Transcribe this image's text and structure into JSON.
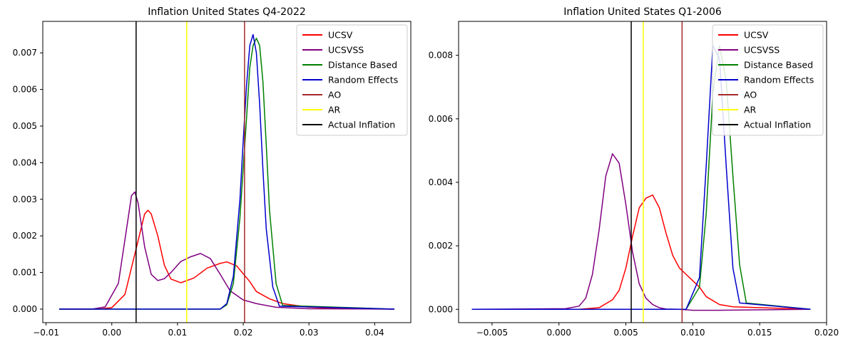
{
  "chart_data": [
    {
      "type": "line",
      "title": "Inflation United States Q4-2022",
      "xlabel": "",
      "ylabel": "",
      "xlim": [
        -0.0105,
        0.0455
      ],
      "ylim": [
        -0.00037,
        0.00786
      ],
      "xticks": [
        -0.01,
        0.0,
        0.01,
        0.02,
        0.03,
        0.04
      ],
      "xtick_labels": [
        "−0.01",
        "0.00",
        "0.01",
        "0.02",
        "0.03",
        "0.04"
      ],
      "yticks": [
        0.0,
        0.001,
        0.002,
        0.003,
        0.004,
        0.005,
        0.006,
        0.007
      ],
      "ytick_labels": [
        "0.000",
        "0.001",
        "0.002",
        "0.003",
        "0.004",
        "0.005",
        "0.006",
        "0.007"
      ],
      "legend_position": "top-right",
      "grid": false,
      "series": [
        {
          "name": "UCSV",
          "color": "#ff0000",
          "x": [
            -0.008,
            -0.002,
            0.0,
            0.002,
            0.0035,
            0.005,
            0.0055,
            0.006,
            0.007,
            0.008,
            0.009,
            0.0105,
            0.0125,
            0.0145,
            0.0165,
            0.0175,
            0.019,
            0.021,
            0.022,
            0.024,
            0.026,
            0.03,
            0.035,
            0.043
          ],
          "y": [
            0.0,
            0.0,
            4e-05,
            0.0004,
            0.0015,
            0.0026,
            0.0027,
            0.0026,
            0.002,
            0.0012,
            0.00082,
            0.00072,
            0.00085,
            0.00112,
            0.00125,
            0.00129,
            0.00118,
            0.00075,
            0.00048,
            0.00028,
            0.00015,
            5e-05,
            1e-05,
            0.0
          ]
        },
        {
          "name": "UCSVSS",
          "color": "#800080",
          "x": [
            -0.008,
            -0.003,
            -0.001,
            0.001,
            0.002,
            0.003,
            0.0035,
            0.004,
            0.005,
            0.006,
            0.007,
            0.008,
            0.009,
            0.0105,
            0.012,
            0.0135,
            0.015,
            0.0165,
            0.018,
            0.02,
            0.022,
            0.025,
            0.03,
            0.043
          ],
          "y": [
            0.0,
            0.0,
            6e-05,
            0.0007,
            0.0019,
            0.0031,
            0.0032,
            0.0029,
            0.0017,
            0.00095,
            0.00078,
            0.00083,
            0.001,
            0.0013,
            0.00143,
            0.00152,
            0.00138,
            0.00095,
            0.0005,
            0.00025,
            0.00015,
            5e-05,
            1e-05,
            0.0
          ]
        },
        {
          "name": "Distance Based",
          "color": "#008000",
          "x": [
            -0.008,
            0.0165,
            0.0175,
            0.0185,
            0.0195,
            0.0205,
            0.021,
            0.0215,
            0.022,
            0.0225,
            0.023,
            0.0235,
            0.024,
            0.025,
            0.026,
            0.043
          ],
          "y": [
            0.0,
            0.0,
            0.00012,
            0.0007,
            0.0025,
            0.0052,
            0.0066,
            0.0072,
            0.0074,
            0.0072,
            0.0062,
            0.0045,
            0.0027,
            0.0007,
            0.0001,
            0.0
          ]
        },
        {
          "name": "Random Effects",
          "color": "#0000cd",
          "x": [
            -0.008,
            0.0165,
            0.0175,
            0.0185,
            0.0195,
            0.02,
            0.0205,
            0.021,
            0.0215,
            0.022,
            0.0225,
            0.023,
            0.0235,
            0.0245,
            0.0255,
            0.043
          ],
          "y": [
            0.0,
            0.0,
            0.00015,
            0.0009,
            0.003,
            0.0046,
            0.0061,
            0.0072,
            0.0075,
            0.007,
            0.0056,
            0.0038,
            0.0022,
            0.0006,
            8e-05,
            0.0
          ]
        },
        {
          "name": "AO",
          "color": "#a52a2a",
          "vline": 0.0202
        },
        {
          "name": "AR",
          "color": "#ffff00",
          "vline": 0.0114
        },
        {
          "name": "Actual Inflation",
          "color": "#000000",
          "vline": 0.0037
        }
      ]
    },
    {
      "type": "line",
      "title": "Inflation United States Q1-2006",
      "xlabel": "",
      "ylabel": "",
      "xlim": [
        -0.0075,
        0.02
      ],
      "ylim": [
        -0.00042,
        0.00907
      ],
      "xticks": [
        -0.005,
        0.0,
        0.005,
        0.01,
        0.015,
        0.02
      ],
      "xtick_labels": [
        "−0.005",
        "0.000",
        "0.005",
        "0.010",
        "0.015",
        "0.020"
      ],
      "yticks": [
        0.0,
        0.002,
        0.004,
        0.006,
        0.008
      ],
      "ytick_labels": [
        "0.000",
        "0.002",
        "0.004",
        "0.006",
        "0.008"
      ],
      "legend_position": "top-right",
      "grid": false,
      "series": [
        {
          "name": "UCSV",
          "color": "#ff0000",
          "x": [
            -0.0065,
            0.0015,
            0.003,
            0.004,
            0.0045,
            0.005,
            0.0055,
            0.006,
            0.0065,
            0.007,
            0.0075,
            0.008,
            0.0085,
            0.009,
            0.0095,
            0.01,
            0.0105,
            0.011,
            0.012,
            0.013,
            0.0188
          ],
          "y": [
            0.0,
            0.0,
            5e-05,
            0.0003,
            0.0006,
            0.0013,
            0.0023,
            0.0032,
            0.0035,
            0.0036,
            0.0032,
            0.0024,
            0.0017,
            0.0013,
            0.0011,
            0.0009,
            0.0007,
            0.0004,
            0.00015,
            8e-05,
            0.0
          ]
        },
        {
          "name": "UCSVSS",
          "color": "#800080",
          "x": [
            -0.0065,
            0.0005,
            0.0015,
            0.002,
            0.0025,
            0.003,
            0.0035,
            0.004,
            0.0045,
            0.005,
            0.0055,
            0.006,
            0.0065,
            0.007,
            0.0075,
            0.008,
            0.009,
            0.01,
            0.012,
            0.0188
          ],
          "y": [
            0.0,
            2e-05,
            0.0001,
            0.00035,
            0.0011,
            0.0025,
            0.0042,
            0.0049,
            0.0046,
            0.0033,
            0.0018,
            0.0008,
            0.00035,
            0.00015,
            5e-05,
            1e-05,
            0.0,
            -3e-05,
            -3e-05,
            0.0
          ]
        },
        {
          "name": "Distance Based",
          "color": "#008000",
          "x": [
            -0.0065,
            0.0095,
            0.0105,
            0.011,
            0.0115,
            0.012,
            0.0125,
            0.013,
            0.0135,
            0.014,
            0.0188
          ],
          "y": [
            0.0,
            0.0,
            0.0007,
            0.003,
            0.0068,
            0.0083,
            0.0072,
            0.0042,
            0.0014,
            0.0002,
            0.0
          ]
        },
        {
          "name": "Random Effects",
          "color": "#0000cd",
          "x": [
            -0.0065,
            0.0095,
            0.0105,
            0.011,
            0.0115,
            0.012,
            0.0125,
            0.013,
            0.0135,
            0.0188
          ],
          "y": [
            0.0,
            0.0,
            0.001,
            0.0045,
            0.0083,
            0.0079,
            0.0045,
            0.0013,
            0.0002,
            0.0
          ]
        },
        {
          "name": "AO",
          "color": "#a52a2a",
          "vline": 0.0092
        },
        {
          "name": "AR",
          "color": "#ffff00",
          "vline": 0.0063
        },
        {
          "name": "Actual Inflation",
          "color": "#000000",
          "vline": 0.0054
        }
      ]
    }
  ]
}
